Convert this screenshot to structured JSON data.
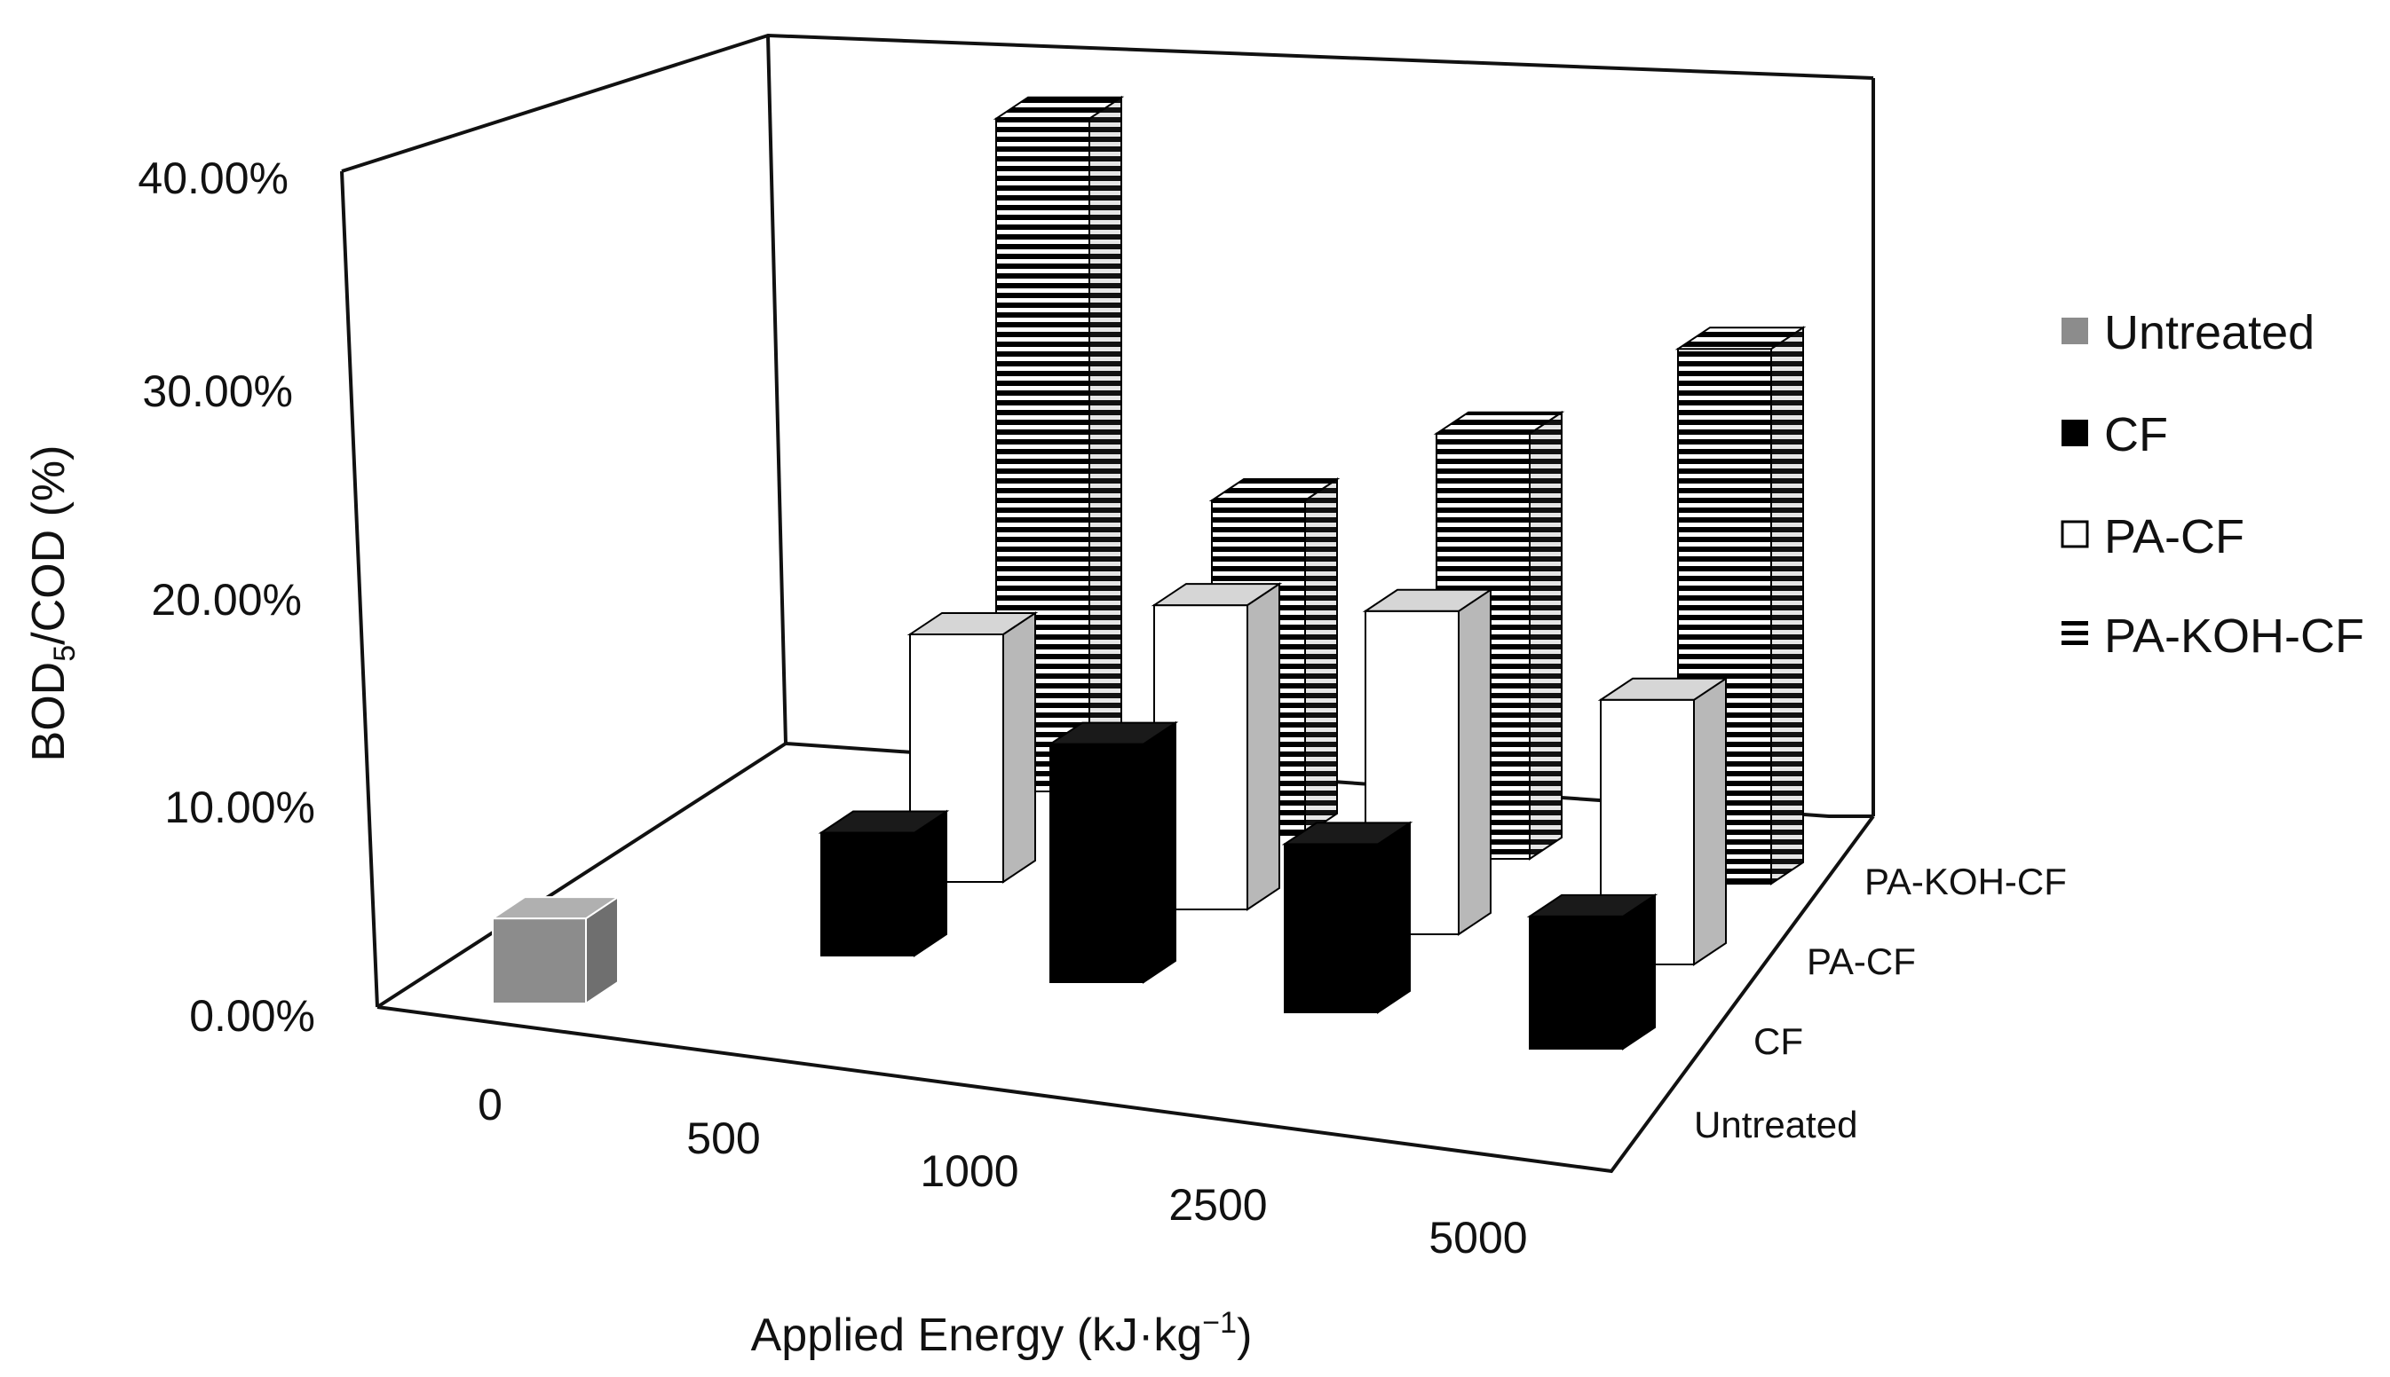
{
  "chart_data": {
    "type": "bar",
    "categories": [
      "0",
      "500",
      "1000",
      "2500",
      "5000"
    ],
    "series": [
      {
        "name": "Untreated",
        "values": [
          4.5,
          null,
          null,
          null,
          null
        ]
      },
      {
        "name": "CF",
        "values": [
          null,
          6.5,
          12.6,
          8.9,
          7.0
        ]
      },
      {
        "name": "PA-CF",
        "values": [
          null,
          13.1,
          16.1,
          17.1,
          14.0
        ]
      },
      {
        "name": "PA-KOH-CF",
        "values": [
          null,
          35.6,
          17.7,
          22.5,
          28.3
        ]
      }
    ],
    "ylim": [
      0,
      40
    ],
    "yticks": [
      "0.00%",
      "10.00%",
      "20.00%",
      "30.00%",
      "40.00%"
    ],
    "ylabel": {
      "main": "BOD",
      "sub": "5",
      "rest": "/COD (%)"
    },
    "xlabel": {
      "main": "Applied Energy (kJ·kg",
      "sup": "−1",
      "end": ")"
    },
    "depth_labels": [
      "Untreated",
      "CF",
      "PA-CF",
      "PA-KOH-CF"
    ],
    "legend": [
      {
        "label": "Untreated",
        "swatch": "gray"
      },
      {
        "label": "CF",
        "swatch": "black"
      },
      {
        "label": "PA-CF",
        "swatch": "white"
      },
      {
        "label": "PA-KOH-CF",
        "swatch": "striped"
      }
    ],
    "legend_position": "right",
    "colors": {
      "untreated": "#8c8c8c",
      "cf": "#000000",
      "pa_cf": "#ffffff",
      "pa_koh_cf": "#000000",
      "pa_koh_cf_stripe": "#ffffff",
      "side_gray": "#b8b8b8"
    }
  }
}
